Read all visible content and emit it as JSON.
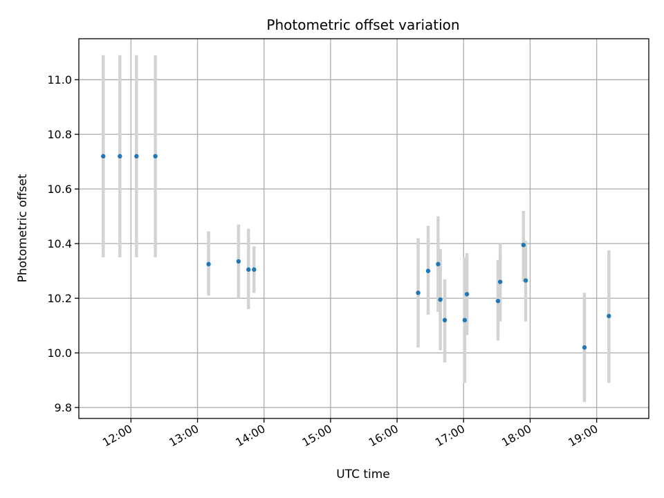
{
  "chart_data": {
    "type": "scatter",
    "title": "Photometric offset variation",
    "xlabel": "UTC time",
    "ylabel": "Photometric offset",
    "x_axis_type": "time",
    "xlim": [
      "11:13",
      "19:47"
    ],
    "ylim": [
      9.76,
      11.15
    ],
    "x_ticks": [
      "12:00",
      "13:00",
      "14:00",
      "15:00",
      "16:00",
      "17:00",
      "18:00",
      "19:00"
    ],
    "y_ticks": [
      "9.8",
      "10.0",
      "10.2",
      "10.4",
      "10.6",
      "10.8",
      "11.0"
    ],
    "grid": true,
    "marker_color": "#1f77b4",
    "errorbar_color": "#d3d3d3",
    "points": [
      {
        "x": "11:35",
        "y": 10.72,
        "ylo": 10.35,
        "yhi": 11.09
      },
      {
        "x": "11:50",
        "y": 10.72,
        "ylo": 10.35,
        "yhi": 11.09
      },
      {
        "x": "12:05",
        "y": 10.72,
        "ylo": 10.35,
        "yhi": 11.09
      },
      {
        "x": "12:22",
        "y": 10.72,
        "ylo": 10.35,
        "yhi": 11.09
      },
      {
        "x": "13:10",
        "y": 10.325,
        "ylo": 10.21,
        "yhi": 10.445
      },
      {
        "x": "13:37",
        "y": 10.335,
        "ylo": 10.2,
        "yhi": 10.47
      },
      {
        "x": "13:46",
        "y": 10.305,
        "ylo": 10.16,
        "yhi": 10.455
      },
      {
        "x": "13:51",
        "y": 10.305,
        "ylo": 10.22,
        "yhi": 10.39
      },
      {
        "x": "16:19",
        "y": 10.22,
        "ylo": 10.02,
        "yhi": 10.42
      },
      {
        "x": "16:28",
        "y": 10.3,
        "ylo": 10.14,
        "yhi": 10.465
      },
      {
        "x": "16:37",
        "y": 10.325,
        "ylo": 10.15,
        "yhi": 10.5
      },
      {
        "x": "16:39",
        "y": 10.195,
        "ylo": 10.01,
        "yhi": 10.38
      },
      {
        "x": "16:43",
        "y": 10.12,
        "ylo": 9.965,
        "yhi": 10.27
      },
      {
        "x": "17:01",
        "y": 10.12,
        "ylo": 9.89,
        "yhi": 10.35
      },
      {
        "x": "17:03",
        "y": 10.215,
        "ylo": 10.065,
        "yhi": 10.365
      },
      {
        "x": "17:31",
        "y": 10.19,
        "ylo": 10.045,
        "yhi": 10.34
      },
      {
        "x": "17:33",
        "y": 10.26,
        "ylo": 10.115,
        "yhi": 10.4
      },
      {
        "x": "17:54",
        "y": 10.395,
        "ylo": 10.26,
        "yhi": 10.52
      },
      {
        "x": "17:56",
        "y": 10.265,
        "ylo": 10.115,
        "yhi": 10.41
      },
      {
        "x": "18:49",
        "y": 10.02,
        "ylo": 9.82,
        "yhi": 10.22
      },
      {
        "x": "19:11",
        "y": 10.135,
        "ylo": 9.89,
        "yhi": 10.375
      }
    ]
  }
}
